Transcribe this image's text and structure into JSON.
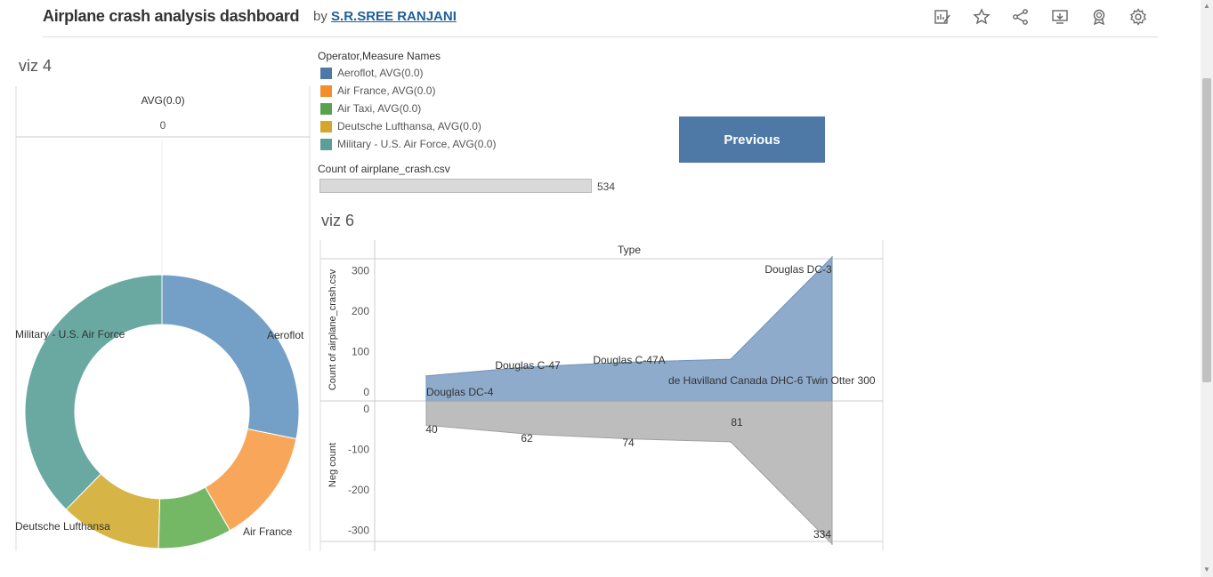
{
  "header": {
    "title": "Airplane crash analysis dashboard",
    "by": "by",
    "author": "S.R.SREE RANJANI"
  },
  "toolbar": [
    "edit-metrics-icon",
    "favorite-icon",
    "share-icon",
    "download-icon",
    "badge-icon",
    "settings-icon"
  ],
  "viz4": {
    "title": "viz 4",
    "column_header": "AVG(0.0)",
    "column_value": "0"
  },
  "legend": {
    "title": "Operator,Measure Names",
    "items": [
      {
        "label": "Aeroflot, AVG(0.0)",
        "color": "#4e79a7"
      },
      {
        "label": "Air France, AVG(0.0)",
        "color": "#f28e2b"
      },
      {
        "label": "Air Taxi, AVG(0.0)",
        "color": "#59a14f"
      },
      {
        "label": "Deutsche Lufthansa, AVG(0.0)",
        "color": "#d4a72c"
      },
      {
        "label": "Military - U.S. Air Force, AVG(0.0)",
        "color": "#5e9e98"
      }
    ]
  },
  "count": {
    "title": "Count of airplane_crash.csv",
    "value": "534"
  },
  "previous_button": "Previous",
  "viz6": {
    "title": "viz 6",
    "header": "Type"
  },
  "chart_data": [
    {
      "type": "pie",
      "title": "viz 4",
      "donut": true,
      "categories": [
        "Aeroflot",
        "Air France",
        "Air Taxi",
        "Deutsche Lufthansa",
        "Military - U.S. Air Force"
      ],
      "values": [
        104,
        50,
        32,
        44,
        139
      ],
      "colors": [
        "#74a0c7",
        "#f8a75a",
        "#74b865",
        "#d6b546",
        "#6aa9a1"
      ],
      "labels": [
        "Aeroflot",
        "Air France",
        "",
        "Deutsche Lufthansa",
        "Military - U.S. Air Force"
      ]
    },
    {
      "type": "area",
      "title": "viz 6",
      "header": "Type",
      "categories": [
        "Douglas DC-4",
        "Douglas C-47",
        "Douglas C-47A",
        "de Havilland Canada DHC-6 Twin Otter 300",
        "Douglas DC-3"
      ],
      "series": [
        {
          "name": "Count of airplane_crash.csv",
          "values": [
            40,
            62,
            74,
            81,
            334
          ],
          "color": "#8fabcb",
          "stroke": "#6f92bb"
        },
        {
          "name": "Neg count",
          "values": [
            -40,
            -62,
            -74,
            -81,
            -334
          ],
          "color": "#bdbdbd",
          "stroke": "#a0a0a0"
        }
      ],
      "top_ylabel": "Count of airplane_crash.csv",
      "bottom_ylabel": "Neg count",
      "top_yticks": [
        0,
        100,
        200,
        300
      ],
      "bottom_yticks": [
        0,
        -100,
        -200,
        -300
      ],
      "value_labels": [
        "40",
        "62",
        "74",
        "81",
        "334"
      ]
    }
  ]
}
